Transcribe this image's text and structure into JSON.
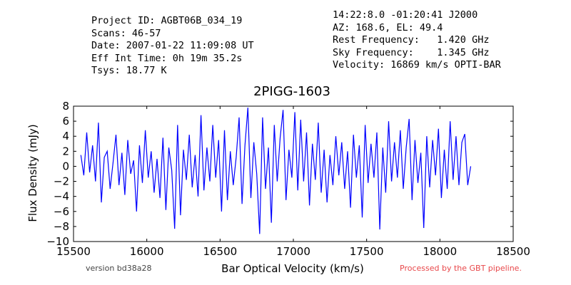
{
  "header": {
    "left_lines": [
      "Project ID: AGBT06B_034_19",
      "Scans: 46-57",
      "Date: 2007-01-22 11:09:08 UT",
      "Eff Int Time: 0h 19m 35.2s",
      "Tsys: 18.77 K"
    ],
    "right_lines": [
      "14:22:8.0 -01:20:41 J2000",
      "AZ: 168.6, EL: 49.4",
      "Rest Frequency:   1.420 GHz",
      "Sky Frequency:    1.345 GHz",
      "Velocity: 16869 km/s OPTI-BAR"
    ]
  },
  "footer": {
    "version": "version bd38a28",
    "pipeline": "Processed by the GBT pipeline."
  },
  "colors": {
    "series": "#0000ff",
    "pipeline_text": "#e8474a"
  },
  "chart_data": {
    "type": "line",
    "title": "2PIGG-1603",
    "xlabel": "Bar Optical Velocity (km/s)",
    "ylabel": "Flux Density (mJy)",
    "xlim": [
      15500,
      18500
    ],
    "ylim": [
      -10,
      8
    ],
    "xticks": [
      15500,
      16000,
      16500,
      17000,
      17500,
      18000,
      18500
    ],
    "yticks": [
      -10,
      -8,
      -6,
      -4,
      -2,
      0,
      2,
      4,
      6,
      8
    ],
    "grid": false,
    "x": [
      15550,
      15570,
      15590,
      15610,
      15630,
      15650,
      15670,
      15690,
      15710,
      15730,
      15750,
      15770,
      15790,
      15810,
      15830,
      15850,
      15870,
      15890,
      15910,
      15930,
      15950,
      15970,
      15990,
      16010,
      16030,
      16050,
      16070,
      16090,
      16110,
      16130,
      16150,
      16170,
      16190,
      16210,
      16230,
      16250,
      16270,
      16290,
      16310,
      16330,
      16350,
      16370,
      16390,
      16410,
      16430,
      16450,
      16470,
      16490,
      16510,
      16530,
      16550,
      16570,
      16590,
      16610,
      16630,
      16650,
      16670,
      16690,
      16710,
      16730,
      16750,
      16770,
      16790,
      16810,
      16830,
      16850,
      16870,
      16890,
      16910,
      16930,
      16950,
      16970,
      16990,
      17010,
      17030,
      17050,
      17070,
      17090,
      17110,
      17130,
      17150,
      17170,
      17190,
      17210,
      17230,
      17250,
      17270,
      17290,
      17310,
      17330,
      17350,
      17370,
      17390,
      17410,
      17430,
      17450,
      17470,
      17490,
      17510,
      17530,
      17550,
      17570,
      17590,
      17610,
      17630,
      17650,
      17670,
      17690,
      17710,
      17730,
      17750,
      17770,
      17790,
      17810,
      17830,
      17850,
      17870,
      17890,
      17910,
      17930,
      17950,
      17970,
      17990,
      18010,
      18030,
      18050,
      18070,
      18090,
      18110,
      18130,
      18150,
      18170,
      18190,
      18210
    ],
    "series": [
      {
        "values": [
          1.5,
          -1.2,
          4.5,
          -0.8,
          2.8,
          -2.0,
          5.8,
          -4.8,
          1.2,
          2.0,
          -3.0,
          0.5,
          4.2,
          -2.5,
          1.8,
          -3.8,
          3.5,
          -1.0,
          0.8,
          -6.0,
          2.8,
          -2.2,
          4.8,
          -1.5,
          2.0,
          -3.5,
          1.0,
          -4.2,
          3.8,
          -5.8,
          2.5,
          -0.5,
          -8.3,
          5.5,
          -6.5,
          2.2,
          -1.8,
          4.2,
          -2.8,
          1.5,
          -4.0,
          6.8,
          -3.2,
          2.5,
          -2.0,
          5.5,
          -1.5,
          3.5,
          -6.0,
          4.8,
          -4.5,
          2.0,
          -2.5,
          1.2,
          6.5,
          -5.0,
          2.8,
          7.8,
          -4.2,
          3.2,
          -1.0,
          -9.0,
          6.5,
          -3.0,
          2.5,
          -7.5,
          5.5,
          -2.0,
          3.8,
          7.5,
          -4.5,
          2.2,
          -1.5,
          7.2,
          -3.2,
          6.2,
          -2.0,
          4.5,
          -5.2,
          3.0,
          -1.8,
          5.8,
          -3.5,
          2.2,
          -4.8,
          1.5,
          -2.5,
          4.0,
          -1.2,
          3.2,
          -3.0,
          2.0,
          -5.5,
          4.2,
          -1.5,
          2.8,
          -6.8,
          5.5,
          -2.2,
          3.0,
          -1.5,
          4.5,
          -8.4,
          2.5,
          -3.5,
          6.0,
          -2.0,
          3.2,
          -1.5,
          4.8,
          -3.0,
          2.5,
          6.3,
          -4.5,
          3.5,
          -2.2,
          1.8,
          -8.2,
          4.0,
          -2.8,
          3.5,
          -1.2,
          5.0,
          -4.2,
          2.2,
          -3.0,
          6.0,
          -1.8,
          4.0,
          -2.5,
          3.2,
          4.3,
          -2.5,
          0.0
        ]
      }
    ]
  }
}
